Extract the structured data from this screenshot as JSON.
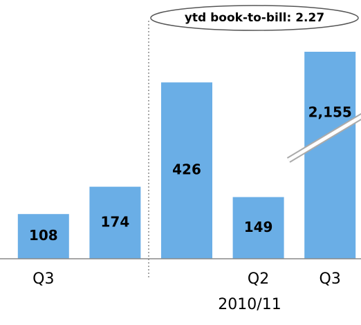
{
  "chart_data": {
    "type": "bar",
    "annotation": "ytd book-to-bill: 2.27",
    "x_label": "2010/11",
    "categories": [
      "Q3",
      null,
      null,
      "Q2",
      "Q3"
    ],
    "values": [
      108,
      174,
      426,
      149,
      2155
    ],
    "value_labels": [
      "108",
      "174",
      "426",
      "149",
      "2,155"
    ],
    "color": "#6aaee6",
    "ylim": [
      0,
      500
    ]
  }
}
